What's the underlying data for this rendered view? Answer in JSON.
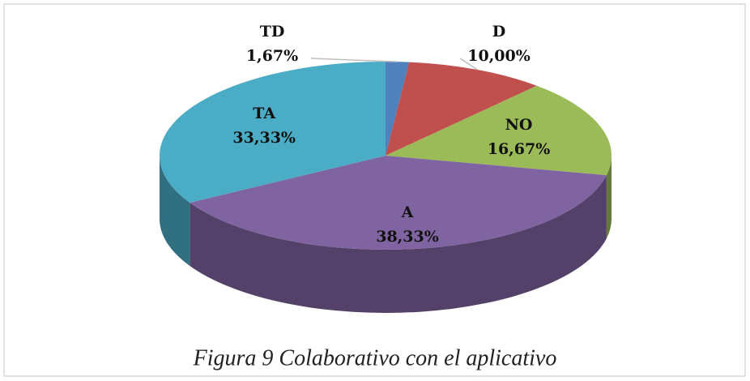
{
  "chart_data": {
    "type": "pie",
    "title": "Figura 9 Colaborativo con el aplicativo",
    "categories": [
      "TD",
      "D",
      "NO",
      "A",
      "TA"
    ],
    "values": [
      1.67,
      10,
      16.67,
      38.33,
      33.33
    ],
    "value_labels": [
      "1,67%",
      "10,00%",
      "16,67%",
      "38,33%",
      "33,33%"
    ],
    "colors": [
      "#4f81bd",
      "#c0504d",
      "#9bbb59",
      "#8064a2",
      "#4bacc6"
    ]
  }
}
